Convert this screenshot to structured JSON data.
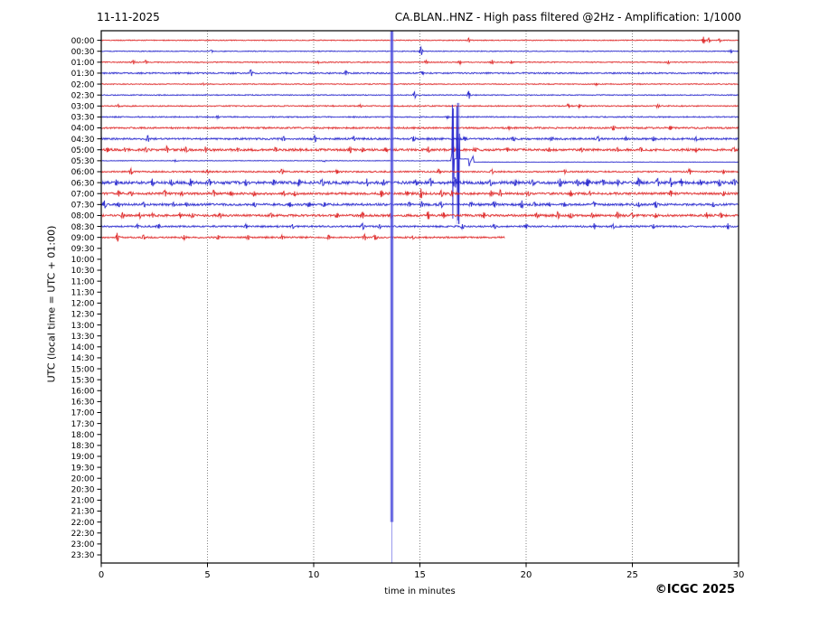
{
  "chart_data": {
    "type": "line",
    "subtype": "helicorder-seismogram",
    "date": "11-11-2025",
    "title": "CA.BLAN..HNZ - High pass filtered @2Hz - Amplification: 1/1000",
    "xlabel": "time in minutes",
    "ylabel": "UTC (local time = UTC + 01:00)",
    "copyright": "©ICGC 2025",
    "xlim": [
      0,
      30
    ],
    "x_ticks": [
      0,
      5,
      10,
      15,
      20,
      25,
      30
    ],
    "grid": "dotted-vertical",
    "y_tick_labels": [
      "00:00",
      "00:30",
      "01:00",
      "01:30",
      "02:00",
      "02:30",
      "03:00",
      "03:30",
      "04:00",
      "04:30",
      "05:00",
      "05:30",
      "06:00",
      "06:30",
      "07:00",
      "07:30",
      "08:00",
      "08:30",
      "09:00",
      "09:30",
      "10:00",
      "10:30",
      "11:00",
      "11:30",
      "12:00",
      "12:30",
      "13:00",
      "13:30",
      "14:00",
      "14:30",
      "15:00",
      "15:30",
      "16:00",
      "16:30",
      "17:00",
      "17:30",
      "18:00",
      "18:30",
      "19:00",
      "19:30",
      "20:00",
      "20:30",
      "21:00",
      "21:30",
      "22:00",
      "22:30",
      "23:00",
      "23:30"
    ],
    "colors": {
      "red": "#dd2222",
      "blue": "#2222cc",
      "grid": "#777777",
      "axis": "#000000",
      "event_line": "#4646df",
      "event_halo": "#9999e0"
    },
    "data_ends_at_label": "09:00",
    "rows": [
      {
        "label": "00:00",
        "color": "red",
        "end": 30,
        "noise": 0.4,
        "events": [
          [
            17.3,
            2.5
          ],
          [
            28.35,
            4
          ],
          [
            28.6,
            3
          ],
          [
            29.1,
            2
          ]
        ]
      },
      {
        "label": "00:30",
        "color": "blue",
        "end": 30,
        "noise": 0.4,
        "events": [
          [
            5.2,
            1.2
          ],
          [
            15.05,
            4.5
          ],
          [
            29.65,
            2
          ]
        ]
      },
      {
        "label": "01:00",
        "color": "red",
        "end": 30,
        "noise": 0.5,
        "events": [
          [
            1.5,
            2.5
          ],
          [
            2.1,
            2
          ],
          [
            10.2,
            1.5
          ],
          [
            15.3,
            2
          ],
          [
            16.9,
            1.8
          ],
          [
            18.4,
            2.5
          ],
          [
            19.3,
            1.8
          ],
          [
            26.7,
            1.8
          ]
        ]
      },
      {
        "label": "01:30",
        "color": "blue",
        "end": 30,
        "noise": 0.7,
        "events": [
          [
            7.05,
            3.5
          ],
          [
            11.5,
            2.5
          ],
          [
            15.1,
            1.8
          ]
        ]
      },
      {
        "label": "02:00",
        "color": "red",
        "end": 30,
        "noise": 0.45,
        "events": [
          [
            4.8,
            1.2
          ],
          [
            23.3,
            1.2
          ]
        ]
      },
      {
        "label": "02:30",
        "color": "blue",
        "end": 30,
        "noise": 0.45,
        "events": [
          [
            14.75,
            3.5
          ],
          [
            17.3,
            4.5
          ]
        ]
      },
      {
        "label": "03:00",
        "color": "red",
        "end": 30,
        "noise": 0.55,
        "events": [
          [
            0.8,
            1.8
          ],
          [
            12.2,
            1.5
          ],
          [
            22.0,
            2.5
          ],
          [
            22.5,
            2
          ],
          [
            26.2,
            1.8
          ]
        ]
      },
      {
        "label": "03:30",
        "color": "blue",
        "end": 30,
        "noise": 0.55,
        "events": [
          [
            5.5,
            1.3
          ],
          [
            16.3,
            1.5
          ]
        ]
      },
      {
        "label": "04:00",
        "color": "red",
        "end": 30,
        "noise": 0.8,
        "events": [
          [
            19.2,
            1.8
          ],
          [
            24.1,
            2.5
          ],
          [
            26.8,
            2.2
          ]
        ]
      },
      {
        "label": "04:30",
        "color": "blue",
        "end": 30,
        "noise": 0.9,
        "events": [
          [
            2.2,
            3.5
          ],
          [
            8.6,
            2.5
          ],
          [
            10.05,
            3.5
          ],
          [
            11.9,
            2.5
          ],
          [
            14.7,
            2.8
          ],
          [
            17.1,
            2.5
          ],
          [
            19.4,
            2.2
          ],
          [
            21.2,
            2.2
          ],
          [
            23.4,
            2.5
          ],
          [
            24.7,
            2.2
          ],
          [
            26.0,
            2.5
          ],
          [
            28.0,
            2.2
          ]
        ]
      },
      {
        "label": "05:00",
        "color": "red",
        "end": 30,
        "noise": 1.1,
        "events": [
          [
            0.3,
            2.5
          ],
          [
            1.1,
            2.5
          ],
          [
            2.1,
            2.5
          ],
          [
            3.1,
            3.5
          ],
          [
            4.0,
            2.5
          ],
          [
            4.9,
            3.5
          ],
          [
            6.4,
            2.5
          ],
          [
            8.2,
            2.5
          ],
          [
            11.7,
            3.5
          ],
          [
            12.3,
            2.5
          ],
          [
            13.4,
            2.5
          ],
          [
            15.4,
            3.5
          ],
          [
            16.6,
            2.5
          ],
          [
            17.6,
            2.5
          ],
          [
            19.1,
            2.5
          ],
          [
            21.1,
            2.5
          ],
          [
            22.6,
            2.5
          ],
          [
            24.3,
            2.5
          ],
          [
            25.4,
            2.5
          ],
          [
            28.0,
            2.2
          ],
          [
            29.8,
            2.5
          ]
        ]
      },
      {
        "label": "05:30",
        "color": "blue",
        "end": 30,
        "noise": 0.3,
        "segments": [
          {
            "kind": "noise",
            "t0": 0,
            "t1": 16.45,
            "noise": 0.3,
            "events": [
              [
                3.5,
                1.3
              ],
              [
                10.5,
                1.0
              ]
            ]
          },
          {
            "kind": "spikes",
            "points": [
              [
                16.5,
                -8
              ],
              [
                16.53,
                -62
              ],
              [
                16.55,
                64
              ],
              [
                16.57,
                -58
              ],
              [
                16.6,
                20
              ]
            ]
          },
          {
            "kind": "flat",
            "t0": 16.62,
            "t1": 16.72,
            "offset": -2,
            "noise": 0.2
          },
          {
            "kind": "spikes",
            "points": [
              [
                16.74,
                -60
              ],
              [
                16.78,
                66
              ],
              [
                16.8,
                -64
              ],
              [
                16.83,
                70
              ],
              [
                16.86,
                -30
              ]
            ]
          },
          {
            "kind": "flat",
            "t0": 16.88,
            "t1": 17.3,
            "offset": -2,
            "noise": 0.2
          },
          {
            "kind": "spikes",
            "points": [
              [
                17.32,
                6
              ],
              [
                17.36,
                2
              ]
            ]
          },
          {
            "kind": "spikes",
            "points": [
              [
                17.5,
                -5
              ]
            ]
          },
          {
            "kind": "flat",
            "t0": 17.55,
            "t1": 30,
            "offset": 1.5,
            "noise": 0.2
          }
        ],
        "spike_halo": {
          "t0": 16.7,
          "t1": 16.9,
          "up": 64,
          "down": 70
        }
      },
      {
        "label": "06:00",
        "color": "red",
        "end": 30,
        "noise": 0.7,
        "events": [
          [
            1.4,
            3.5
          ],
          [
            5.0,
            2
          ],
          [
            8.5,
            2.5
          ],
          [
            11.1,
            2.2
          ],
          [
            15.9,
            2.5
          ],
          [
            18.4,
            2.5
          ],
          [
            21.8,
            2.5
          ],
          [
            27.7,
            3.5
          ],
          [
            29.3,
            2.2
          ]
        ]
      },
      {
        "label": "06:30",
        "color": "blue",
        "end": 30,
        "noise": 1.4,
        "events": [
          [
            0.7,
            3.5
          ],
          [
            2.4,
            4.5
          ],
          [
            3.3,
            3.5
          ],
          [
            4.2,
            4.5
          ],
          [
            5.1,
            3.5
          ],
          [
            6.8,
            3.5
          ],
          [
            8.1,
            3.5
          ],
          [
            9.3,
            3.5
          ],
          [
            10.4,
            3.5
          ],
          [
            12.5,
            4.5
          ],
          [
            13.3,
            3.5
          ],
          [
            14.8,
            3.5
          ],
          [
            15.5,
            4.5
          ],
          [
            16.65,
            6
          ],
          [
            18.3,
            3.5
          ],
          [
            19.5,
            3.5
          ],
          [
            20.3,
            3.5
          ],
          [
            21.6,
            4.5
          ],
          [
            22.4,
            3.5
          ],
          [
            22.9,
            4.5
          ],
          [
            23.6,
            3.5
          ],
          [
            24.3,
            3.5
          ],
          [
            25.3,
            4.5
          ],
          [
            26.2,
            4.5
          ],
          [
            26.8,
            5.5
          ],
          [
            27.3,
            4.5
          ],
          [
            28.2,
            3.5
          ],
          [
            29.1,
            3.5
          ],
          [
            29.8,
            3.5
          ]
        ]
      },
      {
        "label": "07:00",
        "color": "red",
        "end": 30,
        "noise": 1.1,
        "events": [
          [
            0.8,
            3.5
          ],
          [
            1.4,
            2.5
          ],
          [
            3.0,
            3.5
          ],
          [
            3.8,
            2.5
          ],
          [
            5.3,
            3.5
          ],
          [
            6.1,
            2.5
          ],
          [
            7.2,
            2.5
          ],
          [
            8.6,
            2.5
          ],
          [
            9.1,
            2.5
          ],
          [
            13.2,
            3.5
          ],
          [
            14.4,
            2.5
          ],
          [
            15.05,
            5.5
          ],
          [
            16.0,
            3.5
          ],
          [
            16.5,
            3.5
          ],
          [
            18.35,
            3.5
          ],
          [
            18.8,
            3.5
          ],
          [
            20.1,
            2.5
          ],
          [
            22.1,
            3.5
          ],
          [
            23.0,
            2.5
          ],
          [
            26.8,
            3.5
          ],
          [
            29.3,
            2.5
          ]
        ]
      },
      {
        "label": "07:30",
        "color": "blue",
        "end": 30,
        "noise": 1.1,
        "events": [
          [
            0.15,
            4.5
          ],
          [
            0.8,
            2.5
          ],
          [
            2.0,
            2.5
          ],
          [
            3.4,
            2.5
          ],
          [
            4.0,
            2.5
          ],
          [
            7.2,
            2.5
          ],
          [
            8.9,
            2.5
          ],
          [
            9.8,
            2.5
          ],
          [
            10.5,
            2.5
          ],
          [
            14.5,
            2.5
          ],
          [
            15.1,
            2.5
          ],
          [
            16.0,
            3.5
          ],
          [
            17.4,
            2.5
          ],
          [
            18.5,
            3.5
          ],
          [
            19.8,
            4.5
          ],
          [
            20.4,
            2.5
          ],
          [
            21.1,
            2.5
          ],
          [
            21.8,
            2.5
          ],
          [
            23.2,
            2.5
          ],
          [
            25.3,
            2.5
          ],
          [
            26.1,
            3.5
          ],
          [
            28.8,
            2.5
          ]
        ]
      },
      {
        "label": "08:00",
        "color": "red",
        "end": 30,
        "noise": 1.1,
        "events": [
          [
            1.0,
            3.5
          ],
          [
            1.8,
            3.5
          ],
          [
            2.4,
            2.5
          ],
          [
            3.7,
            3.5
          ],
          [
            4.3,
            2.5
          ],
          [
            5.6,
            2.5
          ],
          [
            8.0,
            2.5
          ],
          [
            11.1,
            2.5
          ],
          [
            12.3,
            3.5
          ],
          [
            13.6,
            2.5
          ],
          [
            15.4,
            4.5
          ],
          [
            16.1,
            3.5
          ],
          [
            18.0,
            3.5
          ],
          [
            20.5,
            2.5
          ],
          [
            21.5,
            3.5
          ],
          [
            22.1,
            2.5
          ],
          [
            23.1,
            2.5
          ],
          [
            24.3,
            3.5
          ],
          [
            25.0,
            2.5
          ],
          [
            26.1,
            2.5
          ],
          [
            28.5,
            3.5
          ],
          [
            29.2,
            2.5
          ]
        ]
      },
      {
        "label": "08:30",
        "color": "blue",
        "end": 30,
        "noise": 0.8,
        "events": [
          [
            1.7,
            2.5
          ],
          [
            2.7,
            2.5
          ],
          [
            6.8,
            2.5
          ],
          [
            9.0,
            2.5
          ],
          [
            12.3,
            3.5
          ],
          [
            13.1,
            2.5
          ],
          [
            17.0,
            2.5
          ],
          [
            18.5,
            2.5
          ],
          [
            20.0,
            2.5
          ],
          [
            23.2,
            3.5
          ],
          [
            24.1,
            2.5
          ],
          [
            26.0,
            2.5
          ],
          [
            29.5,
            3.5
          ]
        ]
      },
      {
        "label": "09:00",
        "color": "red",
        "end": 19.0,
        "noise": 0.8,
        "events": [
          [
            0.75,
            5
          ],
          [
            2.0,
            2.5
          ],
          [
            3.9,
            2.5
          ],
          [
            5.5,
            2.5
          ],
          [
            6.9,
            2.5
          ],
          [
            8.5,
            2.5
          ],
          [
            10.7,
            2.5
          ],
          [
            12.4,
            3.5
          ],
          [
            12.9,
            2.5
          ],
          [
            14.65,
            2
          ]
        ]
      }
    ],
    "vertical_line": {
      "minute": 13.68,
      "thick_to_row": 44,
      "note": "tall blue event line spanning 00:00 to 22:00, thin to bottom"
    }
  }
}
